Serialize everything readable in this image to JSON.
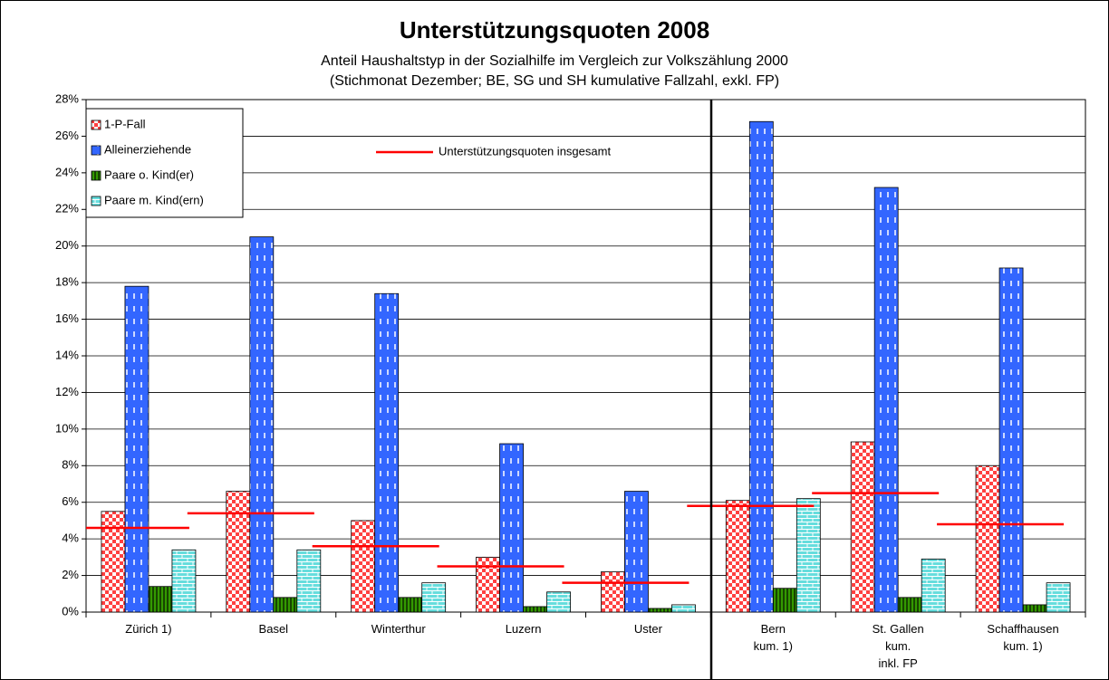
{
  "chart_data": {
    "type": "bar",
    "title": "Unterstützungsquoten 2008",
    "subtitle": [
      "Anteil Haushaltstyp in der Sozialhilfe im Vergleich zur Volkszählung 2000",
      "(Stichmonat Dezember; BE, SG und SH kumulative Fallzahl, exkl. FP)"
    ],
    "categories": [
      "Zürich 1)",
      "Basel",
      "Winterthur",
      "Luzern",
      "Uster",
      "Bern\nkum. 1)",
      "St. Gallen\nkum.\ninkl. FP",
      "Schaffhausen\nkum. 1)"
    ],
    "series": [
      {
        "name": "1-P-Fall",
        "color": "#ff4040",
        "values": [
          5.5,
          6.6,
          5.0,
          3.0,
          2.2,
          6.1,
          9.3,
          8.0
        ]
      },
      {
        "name": "Alleinerziehende",
        "color": "#3366ff",
        "values": [
          17.8,
          20.5,
          17.4,
          9.2,
          6.6,
          26.8,
          23.2,
          18.8
        ]
      },
      {
        "name": "Paare o. Kind(er)",
        "color": "#339900",
        "values": [
          1.4,
          0.8,
          0.8,
          0.3,
          0.2,
          1.3,
          0.8,
          0.4
        ]
      },
      {
        "name": "Paare m. Kind(ern)",
        "color": "#66dddd",
        "values": [
          3.4,
          3.4,
          1.6,
          1.1,
          0.4,
          6.2,
          2.9,
          1.6
        ]
      }
    ],
    "total": {
      "name": "Unterstützungsquoten insgesamt",
      "color": "#ff0000",
      "values": [
        4.6,
        5.4,
        3.6,
        2.5,
        1.6,
        5.8,
        6.5,
        4.8
      ]
    },
    "ylim": [
      0,
      28
    ],
    "yticks": [
      {
        "value": 0,
        "label": "0%"
      },
      {
        "value": 2,
        "label": "2%"
      },
      {
        "value": 4,
        "label": "4%"
      },
      {
        "value": 6,
        "label": "6%"
      },
      {
        "value": 8,
        "label": "8%"
      },
      {
        "value": 10,
        "label": "10%"
      },
      {
        "value": 12,
        "label": "12%"
      },
      {
        "value": 14,
        "label": "14%"
      },
      {
        "value": 16,
        "label": "16%"
      },
      {
        "value": 18,
        "label": "18%"
      },
      {
        "value": 20,
        "label": "20%"
      },
      {
        "value": 22,
        "label": "22%"
      },
      {
        "value": 24,
        "label": "24%"
      },
      {
        "value": 26,
        "label": "26%"
      },
      {
        "value": 28,
        "label": "28%"
      }
    ],
    "grid": true
  }
}
